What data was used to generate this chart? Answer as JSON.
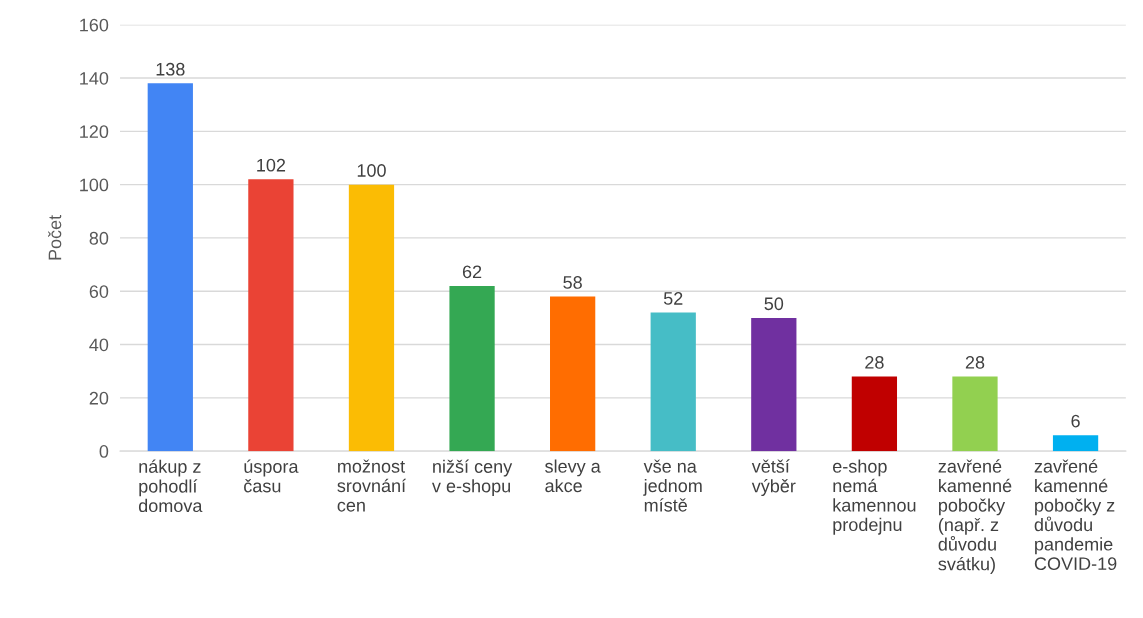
{
  "chart_data": {
    "type": "bar",
    "ylabel": "Počet",
    "categories": [
      "nákup z\npohodlí\ndomova",
      "úspora\nčasu",
      "možnost\nsrovnání\ncen",
      "nižší ceny\nv e-shopu",
      "slevy a\nakce",
      "vše na\njednom\nmístě",
      "větší\nvýběr",
      "e-shop\nnemá\nkamennou\nprodejnu",
      "zavřené\nkamenné\npobočky\n(např. z\ndůvodu\nsvátku)",
      "zavřené\nkamenné\npobočky z\ndůvodu\npandemie\nCOVID-19"
    ],
    "values": [
      138,
      102,
      100,
      62,
      58,
      52,
      50,
      28,
      28,
      6
    ],
    "colors": [
      "#4285f4",
      "#ea4335",
      "#fbbc04",
      "#34a853",
      "#ff6d01",
      "#46bdc6",
      "#7030a0",
      "#c00000",
      "#92d050",
      "#00b0f0"
    ],
    "ylim": [
      0,
      160
    ],
    "yticks": [
      0,
      20,
      40,
      60,
      80,
      100,
      120,
      140,
      160
    ],
    "grid": "y",
    "data_labels": true
  }
}
